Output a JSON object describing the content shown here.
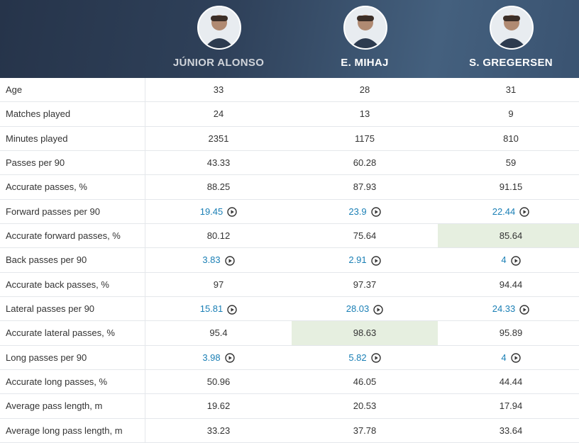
{
  "header": {
    "players": [
      "JÚNIOR ALONSO",
      "E. MIHAJ",
      "S. GREGERSEN"
    ]
  },
  "table": {
    "rows": [
      {
        "label": "Age",
        "values": [
          "33",
          "28",
          "31"
        ]
      },
      {
        "label": "Matches played",
        "values": [
          "24",
          "13",
          "9"
        ]
      },
      {
        "label": "Minutes played",
        "values": [
          "2351",
          "1175",
          "810"
        ]
      },
      {
        "label": "Passes per 90",
        "values": [
          "43.33",
          "60.28",
          "59"
        ]
      },
      {
        "label": "Accurate passes, %",
        "values": [
          "88.25",
          "87.93",
          "91.15"
        ]
      },
      {
        "label": "Forward passes per 90",
        "values": [
          "19.45",
          "23.9",
          "22.44"
        ],
        "linked": true
      },
      {
        "label": "Accurate forward passes, %",
        "values": [
          "80.12",
          "75.64",
          "85.64"
        ],
        "highlight": 2
      },
      {
        "label": "Back passes per 90",
        "values": [
          "3.83",
          "2.91",
          "4"
        ],
        "linked": true
      },
      {
        "label": "Accurate back passes, %",
        "values": [
          "97",
          "97.37",
          "94.44"
        ]
      },
      {
        "label": "Lateral passes per 90",
        "values": [
          "15.81",
          "28.03",
          "24.33"
        ],
        "linked": true
      },
      {
        "label": "Accurate lateral passes, %",
        "values": [
          "95.4",
          "98.63",
          "95.89"
        ],
        "highlight": 1
      },
      {
        "label": "Long passes per 90",
        "values": [
          "3.98",
          "5.82",
          "4"
        ],
        "linked": true
      },
      {
        "label": "Accurate long passes, %",
        "values": [
          "50.96",
          "46.05",
          "44.44"
        ]
      },
      {
        "label": "Average pass length, m",
        "values": [
          "19.62",
          "20.53",
          "17.94"
        ]
      },
      {
        "label": "Average long pass length, m",
        "values": [
          "33.23",
          "37.78",
          "33.64"
        ]
      }
    ]
  }
}
